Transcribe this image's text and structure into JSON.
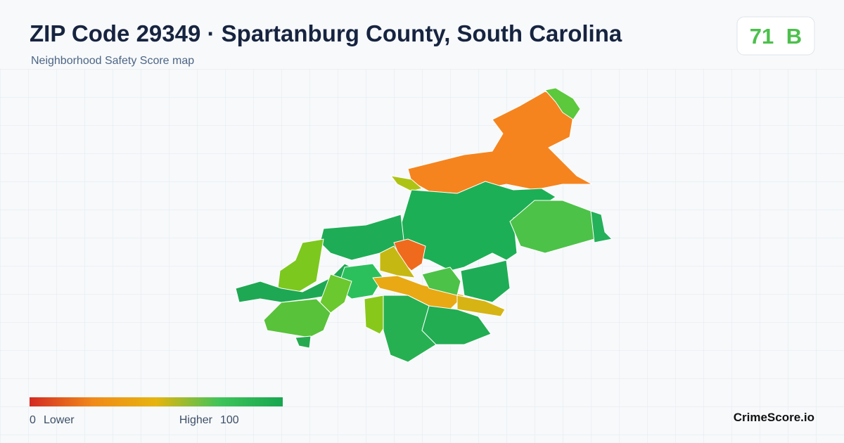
{
  "header": {
    "title": "ZIP Code 29349 · Spartanburg County, South Carolina",
    "subtitle": "Neighborhood Safety Score map"
  },
  "score": {
    "value": 71,
    "grade": "B"
  },
  "legend": {
    "min": 0,
    "min_label": "Lower",
    "max_label": "Higher",
    "max": 100
  },
  "footer": {
    "brand": "CrimeScore.io"
  }
}
